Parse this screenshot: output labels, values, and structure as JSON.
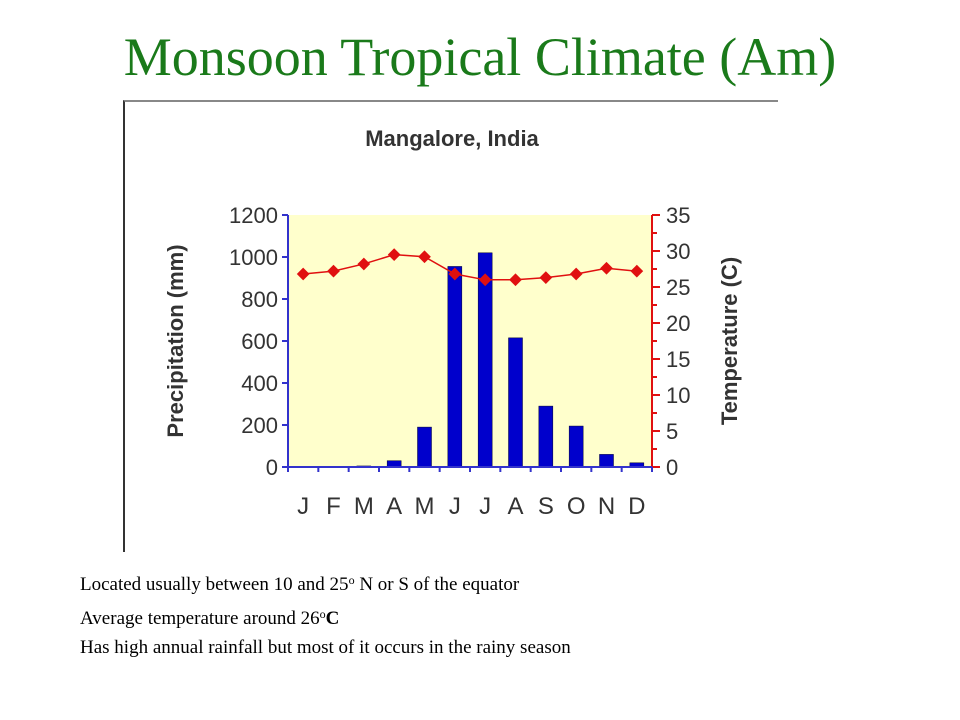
{
  "slide": {
    "title": "Monsoon Tropical Climate (Am)",
    "bullets": [
      {
        "pre": "Located usually between 10 and 25",
        "sup": "o",
        "post": " N or S of the equator",
        "post_bold": ""
      },
      {
        "pre": "Average temperature around 26",
        "sup": "o",
        "post": "",
        "post_bold": "C"
      },
      {
        "pre": "Has high annual rainfall but most of it occurs in the rainy season",
        "sup": "",
        "post": "",
        "post_bold": ""
      }
    ]
  },
  "chart_data": {
    "type": "bar",
    "title": "Mangalore, India",
    "categories": [
      "J",
      "F",
      "M",
      "A",
      "M",
      "J",
      "J",
      "A",
      "S",
      "O",
      "N",
      "D"
    ],
    "series": [
      {
        "name": "Precipitation",
        "axis": "left",
        "type": "bar",
        "color": "#0000cc",
        "values": [
          0,
          0,
          5,
          30,
          190,
          955,
          1020,
          615,
          290,
          195,
          60,
          20
        ]
      },
      {
        "name": "Temperature",
        "axis": "right",
        "type": "line",
        "color": "#e01010",
        "values": [
          26.8,
          27.2,
          28.2,
          29.5,
          29.2,
          26.8,
          26,
          26,
          26.3,
          26.8,
          27.6,
          27.2
        ]
      }
    ],
    "ylabel": "Precipitation (mm)",
    "y2label": "Temperature (C)",
    "ylim": [
      0,
      1200
    ],
    "y2lim": [
      0,
      35
    ],
    "yticks": [
      "0",
      "200",
      "400",
      "600",
      "800",
      "1000",
      "1200"
    ],
    "y2ticks": [
      "0",
      "5",
      "10",
      "15",
      "20",
      "25",
      "30",
      "35"
    ],
    "plot_background": "#ffffcc",
    "left_axis_color": "#3333cc",
    "right_axis_color": "#e01010",
    "grid": false
  }
}
